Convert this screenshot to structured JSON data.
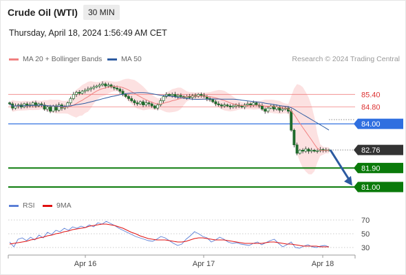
{
  "header": {
    "title": "Crude Oil (WTI)",
    "timeframe": "30 MIN",
    "datetime": "Thursday, April 18, 2024 1:56:49 AM CET"
  },
  "legend": {
    "ma20_label": "MA 20 + Bollinger Bands",
    "ma20_color": "#f08080",
    "ma50_label": "MA 50",
    "ma50_color": "#2c5aa0",
    "credit": "Research © 2024 Trading Central"
  },
  "rsi_legend": {
    "rsi_label": "RSI",
    "rsi_color": "#5b7fd6",
    "ma9_label": "9MA",
    "ma9_color": "#e01010"
  },
  "chart_data": [
    {
      "type": "line",
      "panel": "price",
      "ylim": [
        80.9,
        85.9
      ],
      "x_tick_labels": [
        "Apr 16",
        "Apr 17",
        "Apr 18"
      ],
      "levels": [
        {
          "value": 85.4,
          "label": "85.40",
          "color": "#f08080",
          "style": "thin-red"
        },
        {
          "value": 84.8,
          "label": "84.80",
          "color": "#f08080",
          "style": "thin-red"
        },
        {
          "value": 84.0,
          "label": "84.00",
          "color": "#2f6fe0",
          "style": "blue-box"
        },
        {
          "value": 82.76,
          "label": "82.76",
          "color": "#333333",
          "style": "current"
        },
        {
          "value": 81.9,
          "label": "81.90",
          "color": "#0a7a0a",
          "style": "green-box"
        },
        {
          "value": 81.0,
          "label": "81.00",
          "color": "#0a7a0a",
          "style": "green-box"
        }
      ],
      "closes": [
        84.95,
        84.75,
        84.85,
        84.9,
        84.8,
        84.95,
        84.85,
        84.9,
        85.0,
        84.85,
        84.95,
        84.9,
        84.7,
        84.8,
        84.6,
        84.85,
        84.65,
        84.9,
        84.75,
        84.8,
        85.0,
        85.2,
        85.4,
        85.5,
        85.45,
        85.55,
        85.6,
        85.65,
        85.7,
        85.75,
        85.8,
        85.85,
        85.9,
        85.8,
        85.85,
        85.75,
        85.7,
        85.65,
        85.55,
        85.4,
        85.3,
        85.2,
        85.1,
        85.0,
        84.95,
        85.05,
        84.9,
        85.0,
        84.95,
        84.85,
        84.75,
        84.9,
        85.1,
        85.3,
        85.4,
        85.35,
        85.4,
        85.3,
        85.35,
        85.3,
        85.25,
        85.3,
        85.25,
        85.35,
        85.3,
        85.4,
        85.35,
        85.3,
        85.2,
        85.15,
        85.05,
        84.95,
        84.9,
        84.85,
        84.9,
        84.85,
        84.8,
        84.85,
        84.9,
        84.85,
        84.8,
        84.9,
        84.95,
        84.9,
        85.0,
        84.9,
        84.85,
        84.7,
        84.6,
        84.75,
        84.85,
        84.7,
        84.8,
        84.65,
        84.7,
        84.75,
        84.6,
        83.7,
        83.0,
        82.6,
        82.75,
        82.7,
        82.8,
        82.7,
        82.75,
        82.7,
        82.72,
        82.78,
        82.76,
        82.74,
        82.76
      ],
      "projection": {
        "from": 82.76,
        "to": 81.0
      }
    },
    {
      "type": "line",
      "panel": "rsi",
      "ylim": [
        20,
        80
      ],
      "y_ticks": [
        70,
        50,
        30
      ],
      "series": [
        {
          "name": "RSI",
          "values": [
            38,
            31,
            42,
            44,
            40,
            45,
            41,
            48,
            44,
            52,
            49,
            55,
            53,
            58,
            55,
            60,
            58,
            61,
            59,
            63,
            60,
            66,
            64,
            68,
            65,
            62,
            58,
            55,
            52,
            49,
            46,
            44,
            42,
            40,
            39,
            42,
            46,
            44,
            40,
            36,
            33,
            35,
            42,
            47,
            53,
            50,
            46,
            44,
            38,
            41,
            45,
            42,
            38,
            36,
            37,
            35,
            34,
            33,
            36,
            38,
            34,
            37,
            40,
            42,
            36,
            31,
            34,
            38,
            30,
            29,
            32,
            34,
            31,
            30,
            32,
            33,
            31
          ]
        },
        {
          "name": "9MA",
          "values": [
            35,
            36,
            37,
            38,
            39,
            41,
            42,
            44,
            45,
            47,
            48,
            50,
            51,
            53,
            54,
            56,
            57,
            58,
            59,
            61,
            62,
            63,
            64,
            64,
            63,
            62,
            60,
            58,
            55,
            52,
            50,
            47,
            45,
            43,
            42,
            41,
            41,
            41,
            40,
            39,
            38,
            38,
            39,
            41,
            43,
            44,
            44,
            43,
            42,
            41,
            41,
            41,
            40,
            39,
            38,
            37,
            36,
            36,
            36,
            36,
            36,
            37,
            38,
            38,
            37,
            36,
            35,
            35,
            34,
            33,
            32,
            32,
            32,
            32,
            31,
            31,
            31
          ]
        }
      ]
    }
  ]
}
